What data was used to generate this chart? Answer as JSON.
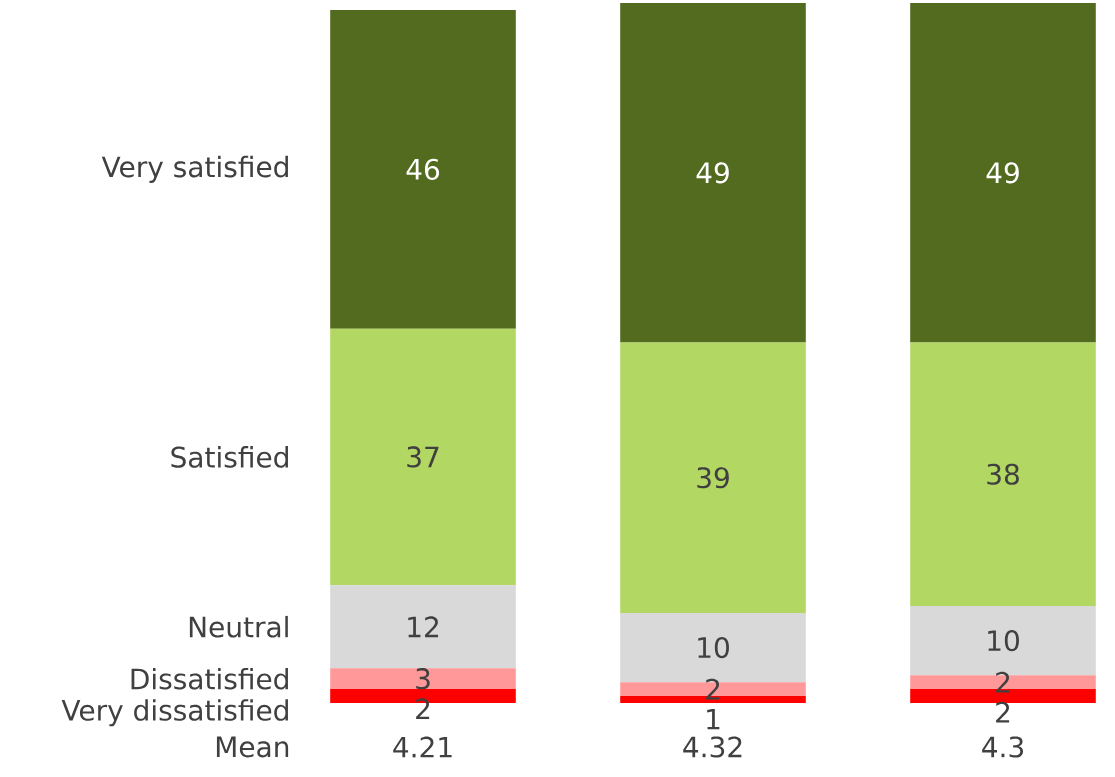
{
  "chart_data": {
    "type": "bar",
    "stacked": true,
    "categories": [
      null,
      null,
      null
    ],
    "series": [
      {
        "name": "Very dissatisfied",
        "color": "#ff0000",
        "values": [
          2,
          1,
          2
        ]
      },
      {
        "name": "Dissatisfied",
        "color": "#ff9999",
        "values": [
          3,
          2,
          2
        ]
      },
      {
        "name": "Neutral",
        "color": "#d9d9d9",
        "values": [
          12,
          10,
          10
        ]
      },
      {
        "name": "Satisfied",
        "color": "#b3d763",
        "values": [
          37,
          39,
          38
        ]
      },
      {
        "name": "Very satisfied",
        "color": "#536b1e",
        "values": [
          46,
          49,
          49
        ]
      }
    ],
    "ylim": [
      0,
      101
    ],
    "data_labels": true,
    "annotations": [
      "Mean",
      "4.21",
      "4.32",
      "4.3"
    ]
  }
}
